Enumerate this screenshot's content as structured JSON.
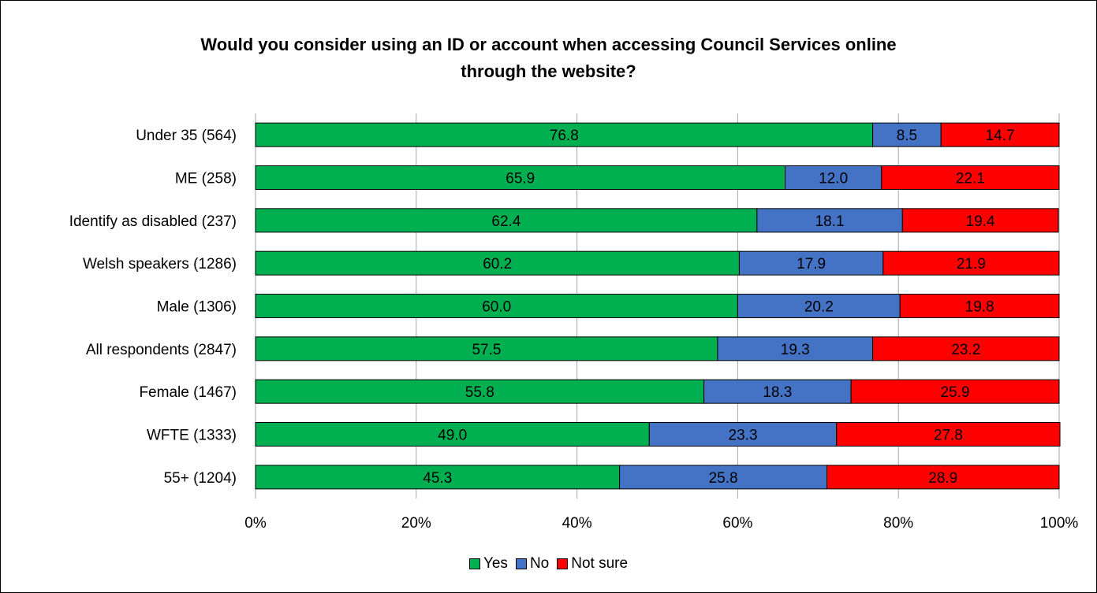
{
  "chart_data": {
    "type": "bar",
    "orientation": "horizontal",
    "stacked": "percent",
    "title": "Would you consider using an ID or account when accessing Council Services online through the website?",
    "title_lines": [
      "Would you consider using an ID or account when accessing Council Services online",
      "through the website?"
    ],
    "categories": [
      "Under 35 (564)",
      "ME (258)",
      "Identify as disabled (237)",
      "Welsh speakers (1286)",
      "Male (1306)",
      "All respondents (2847)",
      "Female (1467)",
      "WFTE (1333)",
      "55+ (1204)"
    ],
    "series": [
      {
        "name": "Yes",
        "color": "#00b050",
        "values": [
          76.8,
          65.9,
          62.4,
          60.2,
          60.0,
          57.5,
          55.8,
          49.0,
          45.3
        ]
      },
      {
        "name": "No",
        "color": "#4472c4",
        "values": [
          8.5,
          12.0,
          18.1,
          17.9,
          20.2,
          19.3,
          18.3,
          23.3,
          25.8
        ]
      },
      {
        "name": "Not sure",
        "color": "#ff0000",
        "values": [
          14.7,
          22.1,
          19.4,
          21.9,
          19.8,
          23.2,
          25.9,
          27.8,
          28.9
        ]
      }
    ],
    "x_ticks": [
      "0%",
      "20%",
      "40%",
      "60%",
      "80%",
      "100%"
    ],
    "xlim": [
      0,
      100
    ],
    "grid": true,
    "legend": "bottom"
  }
}
